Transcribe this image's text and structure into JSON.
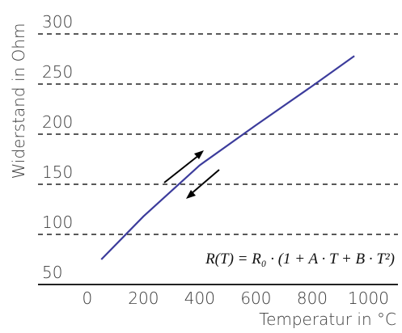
{
  "chart_data": {
    "type": "line",
    "y_label": "Widerstand in Ohm",
    "x_label": "Temperatur in °C",
    "annotation": "R(T) = R₀ · (1 + A · T + B · T²)",
    "x": [
      50,
      200,
      400,
      600,
      800,
      950
    ],
    "series": [
      {
        "color": "#3c3c9c",
        "values": [
          75,
          118,
          169,
          209,
          248,
          278
        ]
      }
    ],
    "xlim": [
      -175,
      1105
    ],
    "ylim": [
      50,
      300
    ],
    "xticks": [
      0,
      200,
      400,
      600,
      800,
      1000
    ],
    "yticks": [
      50,
      100,
      150,
      200,
      250,
      300
    ],
    "grid": true
  }
}
